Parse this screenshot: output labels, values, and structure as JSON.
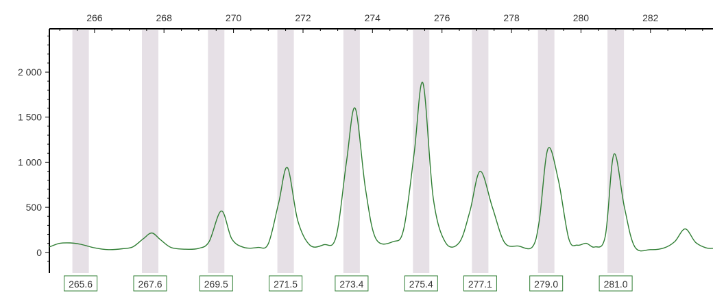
{
  "chart_data": {
    "type": "line",
    "title": "",
    "xlabel": "",
    "ylabel": "",
    "xlim": [
      264.7,
      283.8
    ],
    "ylim": [
      -230,
      2480
    ],
    "x_ticks": [
      "266",
      "268",
      "270",
      "272",
      "274",
      "276",
      "278",
      "280",
      "282"
    ],
    "y_ticks": [
      "0",
      "500",
      "1 000",
      "1 500",
      "2 000"
    ],
    "grid": false,
    "legend": "none",
    "colors": {
      "line": "#2e7d32",
      "bin": "#e6e0e6",
      "axis": "#000000",
      "label_box_border": "#2e7d32"
    },
    "bins": [
      265.6,
      267.6,
      269.5,
      271.5,
      273.4,
      275.4,
      277.1,
      279.0,
      281.0
    ],
    "peak_labels": [
      "265.6",
      "267.6",
      "269.5",
      "271.5",
      "273.4",
      "275.4",
      "277.1",
      "279.0",
      "281.0"
    ],
    "series": [
      {
        "values": [
          [
            264.7,
            60
          ],
          [
            265.0,
            100
          ],
          [
            265.3,
            105
          ],
          [
            265.6,
            90
          ],
          [
            266.0,
            50
          ],
          [
            266.4,
            30
          ],
          [
            266.8,
            40
          ],
          [
            267.1,
            60
          ],
          [
            267.4,
            150
          ],
          [
            267.65,
            215
          ],
          [
            267.9,
            140
          ],
          [
            268.2,
            55
          ],
          [
            268.6,
            35
          ],
          [
            269.0,
            45
          ],
          [
            269.3,
            120
          ],
          [
            269.65,
            460
          ],
          [
            269.95,
            150
          ],
          [
            270.3,
            55
          ],
          [
            270.7,
            55
          ],
          [
            271.0,
            95
          ],
          [
            271.3,
            550
          ],
          [
            271.55,
            940
          ],
          [
            271.85,
            350
          ],
          [
            272.2,
            80
          ],
          [
            272.6,
            85
          ],
          [
            272.95,
            170
          ],
          [
            273.25,
            1000
          ],
          [
            273.5,
            1600
          ],
          [
            273.8,
            700
          ],
          [
            274.1,
            150
          ],
          [
            274.6,
            120
          ],
          [
            274.9,
            260
          ],
          [
            275.2,
            1100
          ],
          [
            275.45,
            1880
          ],
          [
            275.75,
            600
          ],
          [
            276.1,
            110
          ],
          [
            276.5,
            110
          ],
          [
            276.8,
            450
          ],
          [
            277.1,
            900
          ],
          [
            277.45,
            500
          ],
          [
            277.8,
            110
          ],
          [
            278.2,
            70
          ],
          [
            278.6,
            60
          ],
          [
            278.8,
            350
          ],
          [
            279.05,
            1150
          ],
          [
            279.35,
            800
          ],
          [
            279.65,
            150
          ],
          [
            279.9,
            80
          ],
          [
            280.15,
            100
          ],
          [
            280.4,
            60
          ],
          [
            280.7,
            180
          ],
          [
            280.95,
            1090
          ],
          [
            281.25,
            500
          ],
          [
            281.55,
            60
          ],
          [
            282.0,
            30
          ],
          [
            282.4,
            50
          ],
          [
            282.7,
            120
          ],
          [
            283.0,
            260
          ],
          [
            283.3,
            110
          ],
          [
            283.6,
            50
          ],
          [
            283.8,
            45
          ]
        ]
      }
    ]
  }
}
